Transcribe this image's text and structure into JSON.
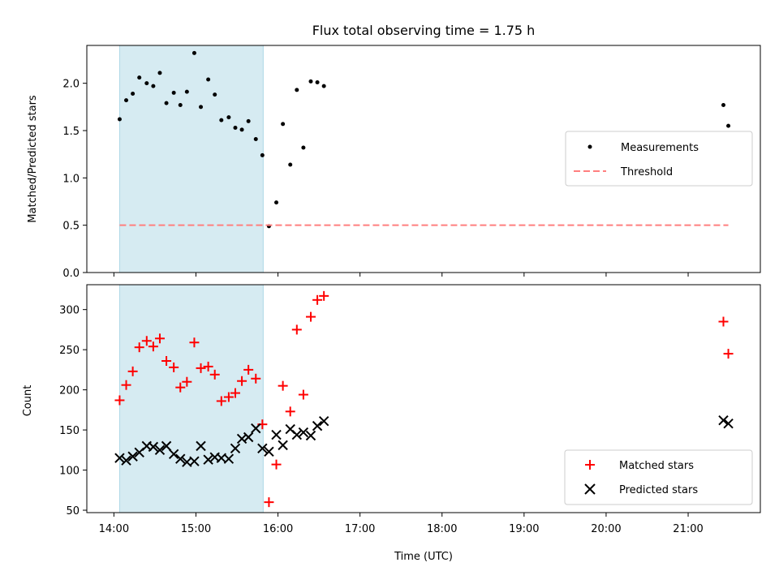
{
  "chart_data": {
    "title": "Flux total observing time = 1.75 h",
    "xlabel": "Time (UTC)",
    "x_ticks": [
      "14:00",
      "15:00",
      "16:00",
      "17:00",
      "18:00",
      "19:00",
      "20:00",
      "21:00"
    ],
    "x_range_hours": [
      13.67,
      21.88
    ],
    "shaded_interval_hours": [
      14.07,
      15.82
    ],
    "shaded_color": "#add8e6",
    "panels": [
      {
        "id": "ratio",
        "type": "scatter",
        "ylabel": "Matched/Predicted stars",
        "ylim": [
          0.0,
          2.4
        ],
        "y_ticks": [
          "0.0",
          "0.5",
          "1.0",
          "1.5",
          "2.0"
        ],
        "legend_position": "center-right",
        "series": [
          {
            "name": "Measurements",
            "marker": "dot",
            "color": "#000000",
            "points": [
              [
                14.07,
                1.62
              ],
              [
                14.15,
                1.82
              ],
              [
                14.23,
                1.89
              ],
              [
                14.31,
                2.06
              ],
              [
                14.4,
                2.0
              ],
              [
                14.48,
                1.97
              ],
              [
                14.56,
                2.11
              ],
              [
                14.64,
                1.79
              ],
              [
                14.73,
                1.9
              ],
              [
                14.81,
                1.77
              ],
              [
                14.89,
                1.91
              ],
              [
                14.98,
                2.32
              ],
              [
                15.06,
                1.75
              ],
              [
                15.15,
                2.04
              ],
              [
                15.23,
                1.88
              ],
              [
                15.31,
                1.61
              ],
              [
                15.4,
                1.64
              ],
              [
                15.48,
                1.53
              ],
              [
                15.56,
                1.51
              ],
              [
                15.64,
                1.6
              ],
              [
                15.73,
                1.41
              ],
              [
                15.81,
                1.24
              ],
              [
                15.89,
                0.49
              ],
              [
                15.98,
                0.74
              ],
              [
                16.06,
                1.57
              ],
              [
                16.15,
                1.14
              ],
              [
                16.23,
                1.93
              ],
              [
                16.31,
                1.32
              ],
              [
                16.4,
                2.02
              ],
              [
                16.48,
                2.01
              ],
              [
                16.56,
                1.97
              ],
              [
                21.43,
                1.77
              ],
              [
                21.49,
                1.55
              ]
            ]
          },
          {
            "name": "Threshold",
            "line_style": "dashed",
            "color": "#ff7f7f",
            "points": [
              [
                14.07,
                0.5
              ],
              [
                21.49,
                0.5
              ]
            ]
          }
        ]
      },
      {
        "id": "counts",
        "type": "scatter",
        "ylabel": "Count",
        "ylim": [
          47,
          331
        ],
        "y_ticks": [
          "50",
          "100",
          "150",
          "200",
          "250",
          "300"
        ],
        "legend_position": "bottom-right",
        "series": [
          {
            "name": "Matched stars",
            "marker": "plus",
            "color": "#ff0000",
            "points": [
              [
                14.07,
                187
              ],
              [
                14.15,
                206
              ],
              [
                14.23,
                223
              ],
              [
                14.31,
                253
              ],
              [
                14.4,
                261
              ],
              [
                14.48,
                254
              ],
              [
                14.56,
                264
              ],
              [
                14.64,
                236
              ],
              [
                14.73,
                228
              ],
              [
                14.81,
                203
              ],
              [
                14.89,
                210
              ],
              [
                14.98,
                259
              ],
              [
                15.06,
                227
              ],
              [
                15.15,
                229
              ],
              [
                15.23,
                219
              ],
              [
                15.31,
                186
              ],
              [
                15.4,
                191
              ],
              [
                15.48,
                196
              ],
              [
                15.56,
                211
              ],
              [
                15.64,
                225
              ],
              [
                15.73,
                214
              ],
              [
                15.81,
                157
              ],
              [
                15.89,
                60
              ],
              [
                15.98,
                107
              ],
              [
                16.06,
                205
              ],
              [
                16.15,
                173
              ],
              [
                16.23,
                275
              ],
              [
                16.31,
                194
              ],
              [
                16.4,
                291
              ],
              [
                16.48,
                312
              ],
              [
                16.56,
                317
              ],
              [
                21.43,
                285
              ],
              [
                21.49,
                245
              ]
            ]
          },
          {
            "name": "Predicted stars",
            "marker": "x",
            "color": "#000000",
            "points": [
              [
                14.07,
                115
              ],
              [
                14.15,
                112
              ],
              [
                14.23,
                117
              ],
              [
                14.31,
                122
              ],
              [
                14.4,
                130
              ],
              [
                14.48,
                129
              ],
              [
                14.56,
                125
              ],
              [
                14.64,
                130
              ],
              [
                14.73,
                120
              ],
              [
                14.81,
                114
              ],
              [
                14.89,
                110
              ],
              [
                14.98,
                111
              ],
              [
                15.06,
                130
              ],
              [
                15.15,
                113
              ],
              [
                15.23,
                116
              ],
              [
                15.31,
                115
              ],
              [
                15.4,
                114
              ],
              [
                15.48,
                127
              ],
              [
                15.56,
                139
              ],
              [
                15.64,
                141
              ],
              [
                15.73,
                152
              ],
              [
                15.81,
                127
              ],
              [
                15.89,
                123
              ],
              [
                15.98,
                144
              ],
              [
                16.06,
                131
              ],
              [
                16.15,
                151
              ],
              [
                16.23,
                144
              ],
              [
                16.31,
                147
              ],
              [
                16.4,
                143
              ],
              [
                16.48,
                155
              ],
              [
                16.56,
                161
              ],
              [
                21.43,
                162
              ],
              [
                21.49,
                158
              ]
            ]
          }
        ]
      }
    ]
  }
}
